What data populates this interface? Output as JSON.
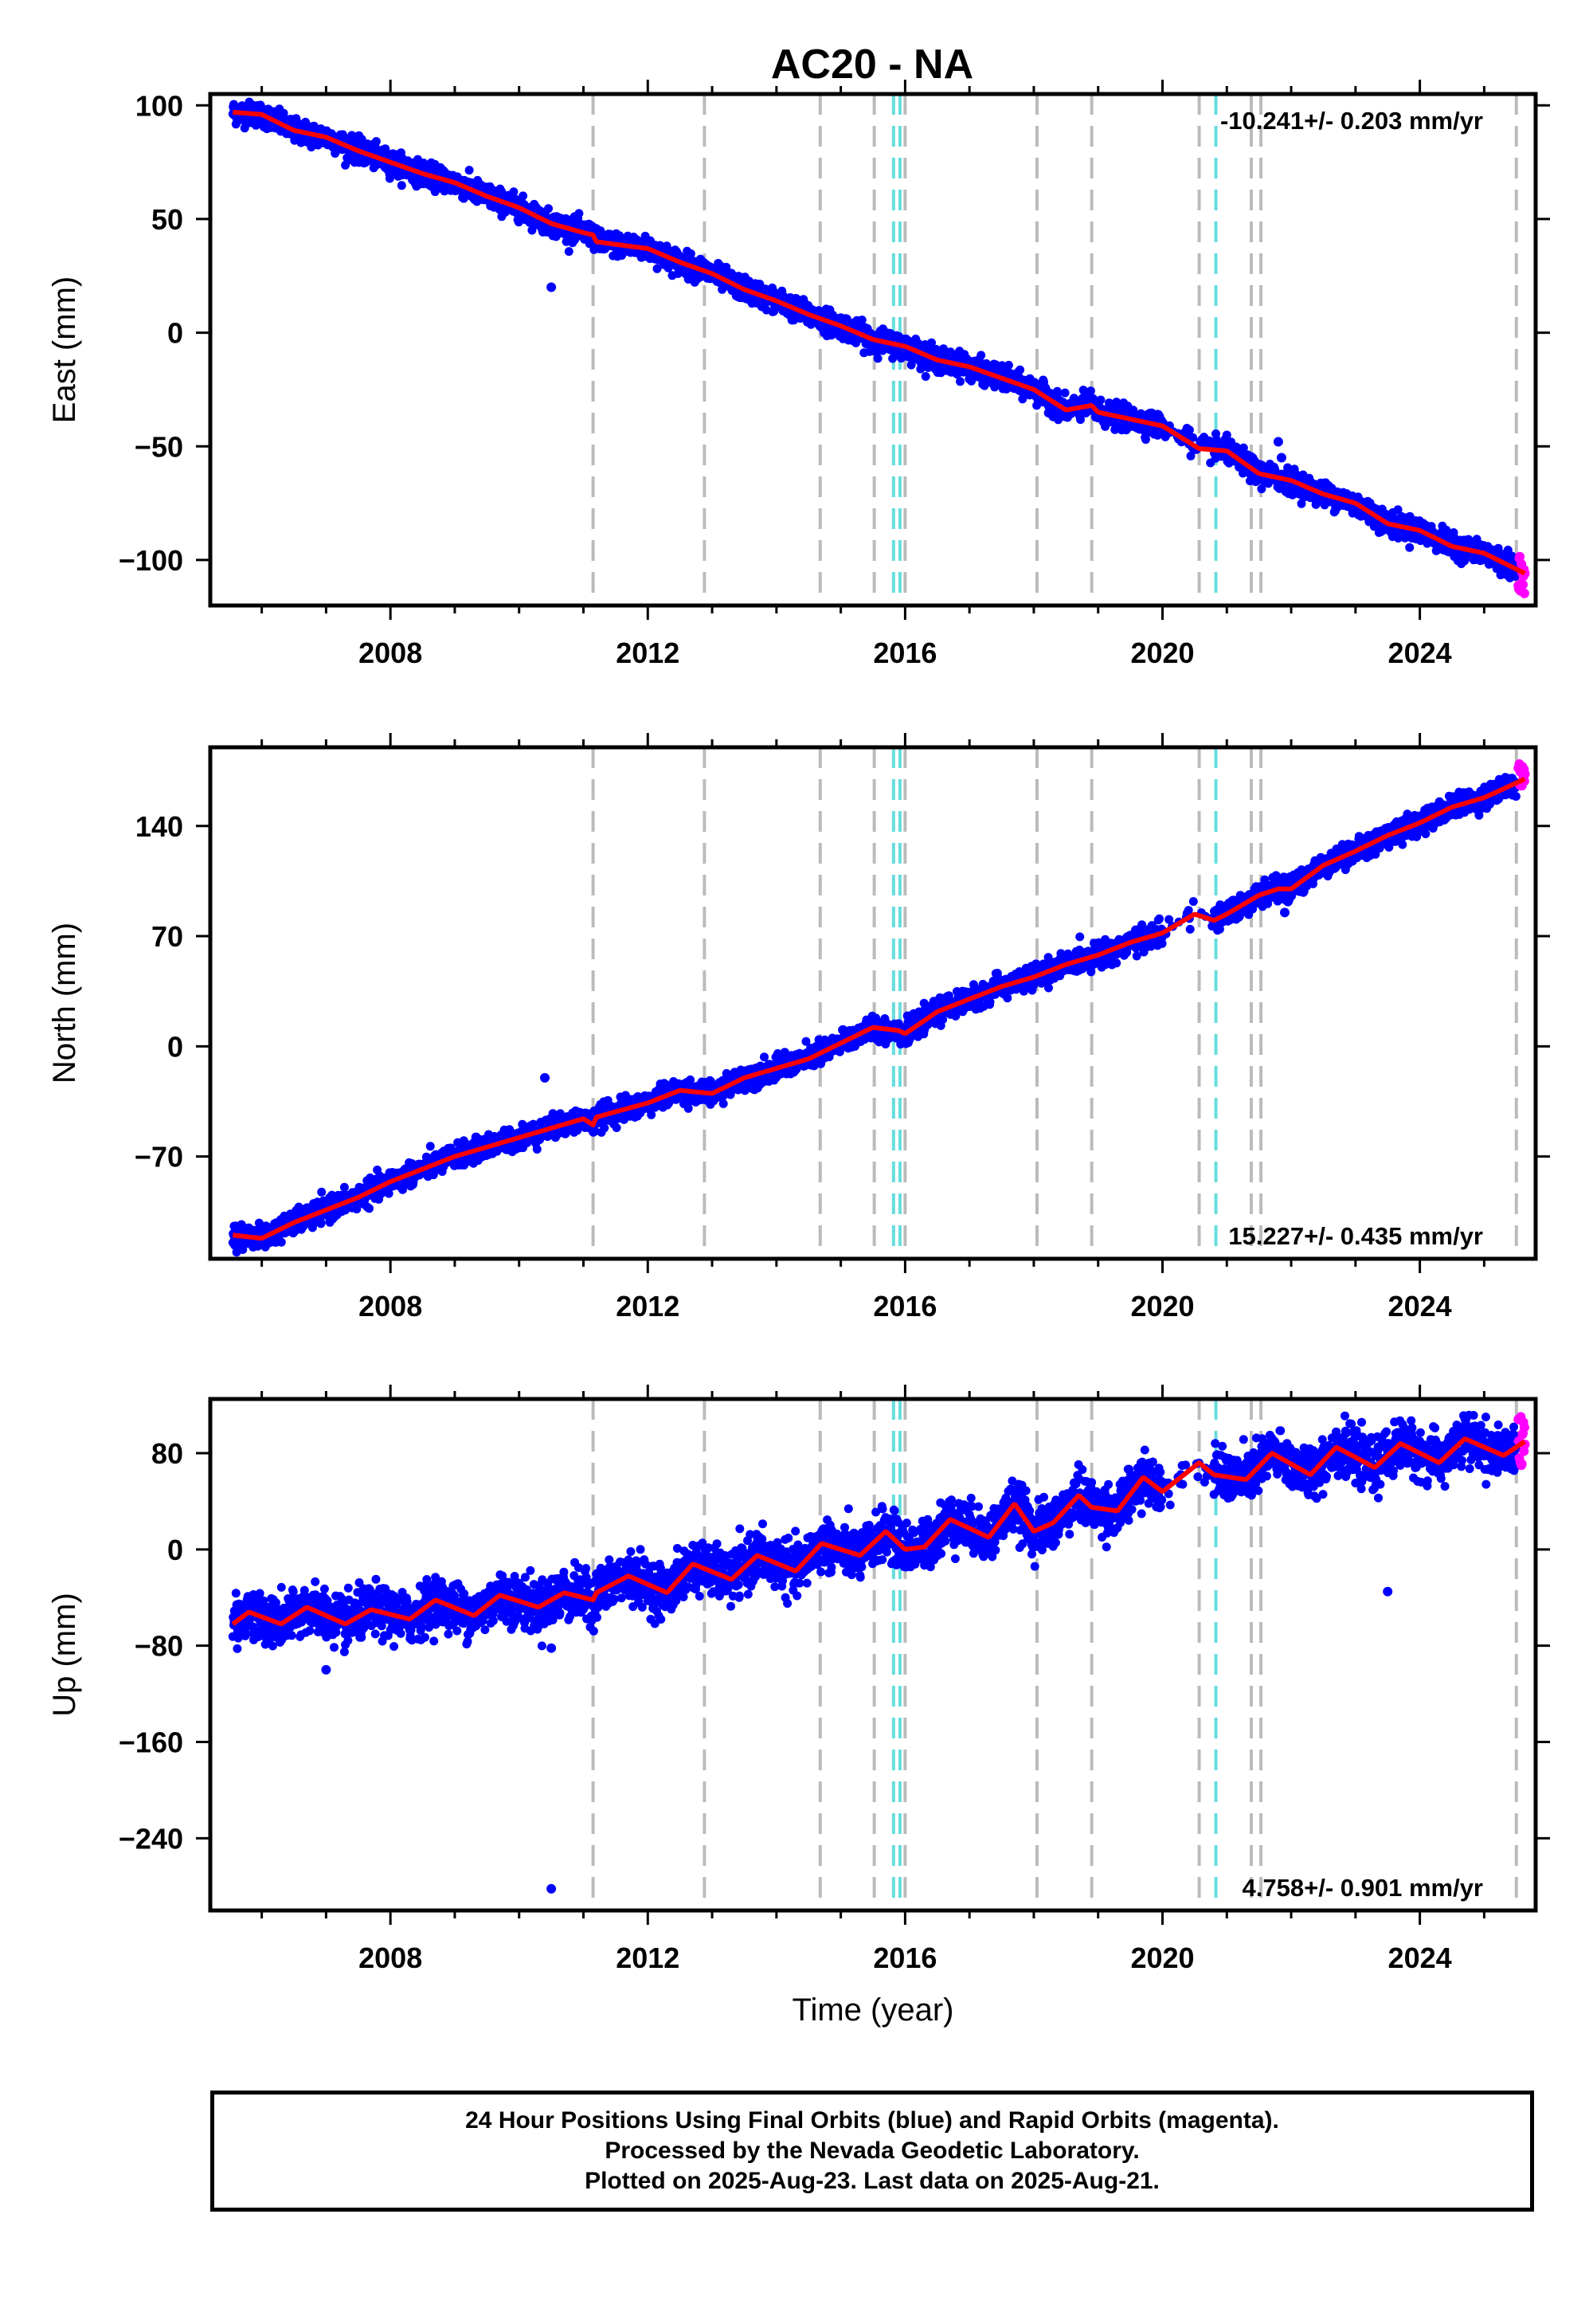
{
  "chart_data": {
    "type": "scatter",
    "title": "AC20 - NA",
    "xlabel": "Time (year)",
    "xlim": [
      2005.2,
      2025.8
    ],
    "x_ticks": [
      2008,
      2012,
      2016,
      2020,
      2024
    ],
    "x_tick_labels": [
      "2008",
      "2012",
      "2016",
      "2020",
      "2024"
    ],
    "data_start": 2005.55,
    "data_end": 2025.64,
    "rapid_start": 2025.5,
    "colors": {
      "final_orbits": "#0000ff",
      "rapid_orbits": "#ff00ff",
      "model": "#ff0000",
      "equipment_change": "#bbbbbb",
      "earthquake": "#66dddd"
    },
    "equipment_change_lines": [
      2011.15,
      2012.88,
      2014.68,
      2015.52,
      2016.0,
      2018.05,
      2018.9,
      2020.57,
      2021.38,
      2021.53,
      2025.5
    ],
    "earthquake_lines": [
      2015.82,
      2015.92,
      2020.83
    ],
    "panels": [
      {
        "ylabel": "East (mm)",
        "ylim": [
          -120,
          105
        ],
        "y_ticks": [
          100,
          50,
          0,
          -50,
          -100
        ],
        "y_tick_labels": [
          "100",
          "50",
          "0",
          "−50",
          "−100"
        ],
        "rate_text": "-10.241+/- 0.203 mm/yr",
        "rate_position": "top-right",
        "rate": -10.241,
        "intercept_at_2005_5": 97,
        "seasonal_amplitude": 2.5,
        "noise": 2.5,
        "gap": [
          2020.0,
          2020.8
        ],
        "model_points": [
          [
            2005.55,
            97
          ],
          [
            2006.0,
            96
          ],
          [
            2006.5,
            89
          ],
          [
            2007.0,
            86
          ],
          [
            2007.5,
            80
          ],
          [
            2008.0,
            75
          ],
          [
            2008.5,
            70
          ],
          [
            2009.0,
            66
          ],
          [
            2009.5,
            60
          ],
          [
            2010.0,
            55
          ],
          [
            2010.5,
            48
          ],
          [
            2011.0,
            44
          ],
          [
            2011.15,
            43
          ],
          [
            2011.2,
            40
          ],
          [
            2012.0,
            37
          ],
          [
            2012.5,
            31
          ],
          [
            2013.0,
            26
          ],
          [
            2013.5,
            19
          ],
          [
            2014.0,
            14
          ],
          [
            2014.5,
            8
          ],
          [
            2015.0,
            3
          ],
          [
            2015.5,
            -3
          ],
          [
            2016.0,
            -6
          ],
          [
            2016.5,
            -12
          ],
          [
            2017.0,
            -15
          ],
          [
            2017.5,
            -20
          ],
          [
            2018.0,
            -25
          ],
          [
            2018.5,
            -34
          ],
          [
            2018.9,
            -32
          ],
          [
            2019.0,
            -35
          ],
          [
            2019.5,
            -38
          ],
          [
            2020.0,
            -41
          ],
          [
            2020.57,
            -51
          ],
          [
            2021.0,
            -52
          ],
          [
            2021.5,
            -62
          ],
          [
            2022.0,
            -65
          ],
          [
            2022.5,
            -71
          ],
          [
            2023.0,
            -75
          ],
          [
            2023.5,
            -84
          ],
          [
            2024.0,
            -87
          ],
          [
            2024.5,
            -94
          ],
          [
            2025.0,
            -97
          ],
          [
            2025.64,
            -106
          ]
        ],
        "outliers": [
          [
            2010.5,
            20
          ],
          [
            2021.8,
            -48
          ],
          [
            2021.85,
            -55
          ]
        ],
        "rapid_range": [
          -115,
          -98
        ]
      },
      {
        "ylabel": "North (mm)",
        "ylim": [
          -135,
          190
        ],
        "y_ticks": [
          140,
          70,
          0,
          -70
        ],
        "y_tick_labels": [
          "140",
          "70",
          "0",
          "−70"
        ],
        "rate_text": "15.227+/- 0.435 mm/yr",
        "rate_position": "bottom-right",
        "rate": 15.227,
        "intercept_at_2005_5": -120,
        "seasonal_amplitude": 5,
        "noise": 3.5,
        "gap": [
          2020.0,
          2020.8
        ],
        "model_points": [
          [
            2005.55,
            -120
          ],
          [
            2006.0,
            -122
          ],
          [
            2006.5,
            -112
          ],
          [
            2007.0,
            -104
          ],
          [
            2007.5,
            -96
          ],
          [
            2008.0,
            -86
          ],
          [
            2008.5,
            -78
          ],
          [
            2009.0,
            -70
          ],
          [
            2009.5,
            -64
          ],
          [
            2010.0,
            -58
          ],
          [
            2010.5,
            -52
          ],
          [
            2011.0,
            -46
          ],
          [
            2011.15,
            -50
          ],
          [
            2011.2,
            -45
          ],
          [
            2012.0,
            -36
          ],
          [
            2012.5,
            -28
          ],
          [
            2013.0,
            -30
          ],
          [
            2013.5,
            -20
          ],
          [
            2014.0,
            -14
          ],
          [
            2014.5,
            -8
          ],
          [
            2015.0,
            2
          ],
          [
            2015.5,
            12
          ],
          [
            2015.9,
            10
          ],
          [
            2016.0,
            8
          ],
          [
            2016.5,
            22
          ],
          [
            2017.0,
            30
          ],
          [
            2017.5,
            38
          ],
          [
            2018.0,
            44
          ],
          [
            2018.5,
            52
          ],
          [
            2019.0,
            58
          ],
          [
            2019.5,
            66
          ],
          [
            2020.0,
            72
          ],
          [
            2020.5,
            84
          ],
          [
            2020.8,
            80
          ],
          [
            2021.0,
            84
          ],
          [
            2021.5,
            96
          ],
          [
            2021.8,
            100
          ],
          [
            2022.0,
            100
          ],
          [
            2022.5,
            115
          ],
          [
            2023.0,
            124
          ],
          [
            2023.5,
            134
          ],
          [
            2024.0,
            142
          ],
          [
            2024.5,
            152
          ],
          [
            2025.0,
            158
          ],
          [
            2025.64,
            170
          ]
        ],
        "outliers": [
          [
            2010.4,
            -20
          ],
          [
            2021.9,
            85
          ],
          [
            2021.95,
            92
          ]
        ],
        "rapid_range": [
          165,
          180
        ]
      },
      {
        "ylabel": "Up (mm)",
        "ylim": [
          -300,
          125
        ],
        "y_ticks": [
          80,
          0,
          -80,
          -160,
          -240
        ],
        "y_tick_labels": [
          "80",
          "0",
          "−80",
          "−160",
          "−240"
        ],
        "rate_text": "4.758+/- 0.901 mm/yr",
        "rate_position": "bottom-right",
        "rate": 4.758,
        "intercept_at_2005_5": -60,
        "seasonal_amplitude": 12,
        "noise": 10,
        "gap": [
          2020.0,
          2020.8
        ],
        "model_points": [
          [
            2005.55,
            -62
          ],
          [
            2005.8,
            -52
          ],
          [
            2006.3,
            -62
          ],
          [
            2006.7,
            -48
          ],
          [
            2007.3,
            -62
          ],
          [
            2007.7,
            -50
          ],
          [
            2008.3,
            -58
          ],
          [
            2008.7,
            -42
          ],
          [
            2009.3,
            -55
          ],
          [
            2009.7,
            -38
          ],
          [
            2010.3,
            -48
          ],
          [
            2010.7,
            -36
          ],
          [
            2011.15,
            -42
          ],
          [
            2011.2,
            -36
          ],
          [
            2011.7,
            -22
          ],
          [
            2012.3,
            -36
          ],
          [
            2012.7,
            -12
          ],
          [
            2013.3,
            -25
          ],
          [
            2013.7,
            -5
          ],
          [
            2014.3,
            -18
          ],
          [
            2014.7,
            5
          ],
          [
            2015.3,
            -5
          ],
          [
            2015.7,
            15
          ],
          [
            2016.0,
            0
          ],
          [
            2016.3,
            2
          ],
          [
            2016.7,
            25
          ],
          [
            2017.3,
            10
          ],
          [
            2017.7,
            38
          ],
          [
            2018.0,
            15
          ],
          [
            2018.3,
            22
          ],
          [
            2018.7,
            45
          ],
          [
            2018.9,
            35
          ],
          [
            2019.3,
            32
          ],
          [
            2019.7,
            60
          ],
          [
            2020.0,
            48
          ],
          [
            2020.57,
            72
          ],
          [
            2020.8,
            62
          ],
          [
            2021.3,
            58
          ],
          [
            2021.7,
            80
          ],
          [
            2022.3,
            62
          ],
          [
            2022.7,
            85
          ],
          [
            2023.3,
            68
          ],
          [
            2023.7,
            88
          ],
          [
            2024.3,
            72
          ],
          [
            2024.7,
            92
          ],
          [
            2025.3,
            78
          ],
          [
            2025.64,
            90
          ]
        ],
        "outliers": [
          [
            2010.5,
            -82
          ],
          [
            2010.5,
            -282
          ],
          [
            2007.0,
            -100
          ],
          [
            2023.5,
            -35
          ]
        ],
        "rapid_range": [
          70,
          115
        ]
      }
    ]
  },
  "footer": {
    "line1": "24 Hour Positions Using Final Orbits (blue) and Rapid Orbits (magenta).",
    "line2": "Processed by the Nevada Geodetic Laboratory.",
    "line3": "Plotted on 2025-Aug-23. Last data on 2025-Aug-21."
  }
}
